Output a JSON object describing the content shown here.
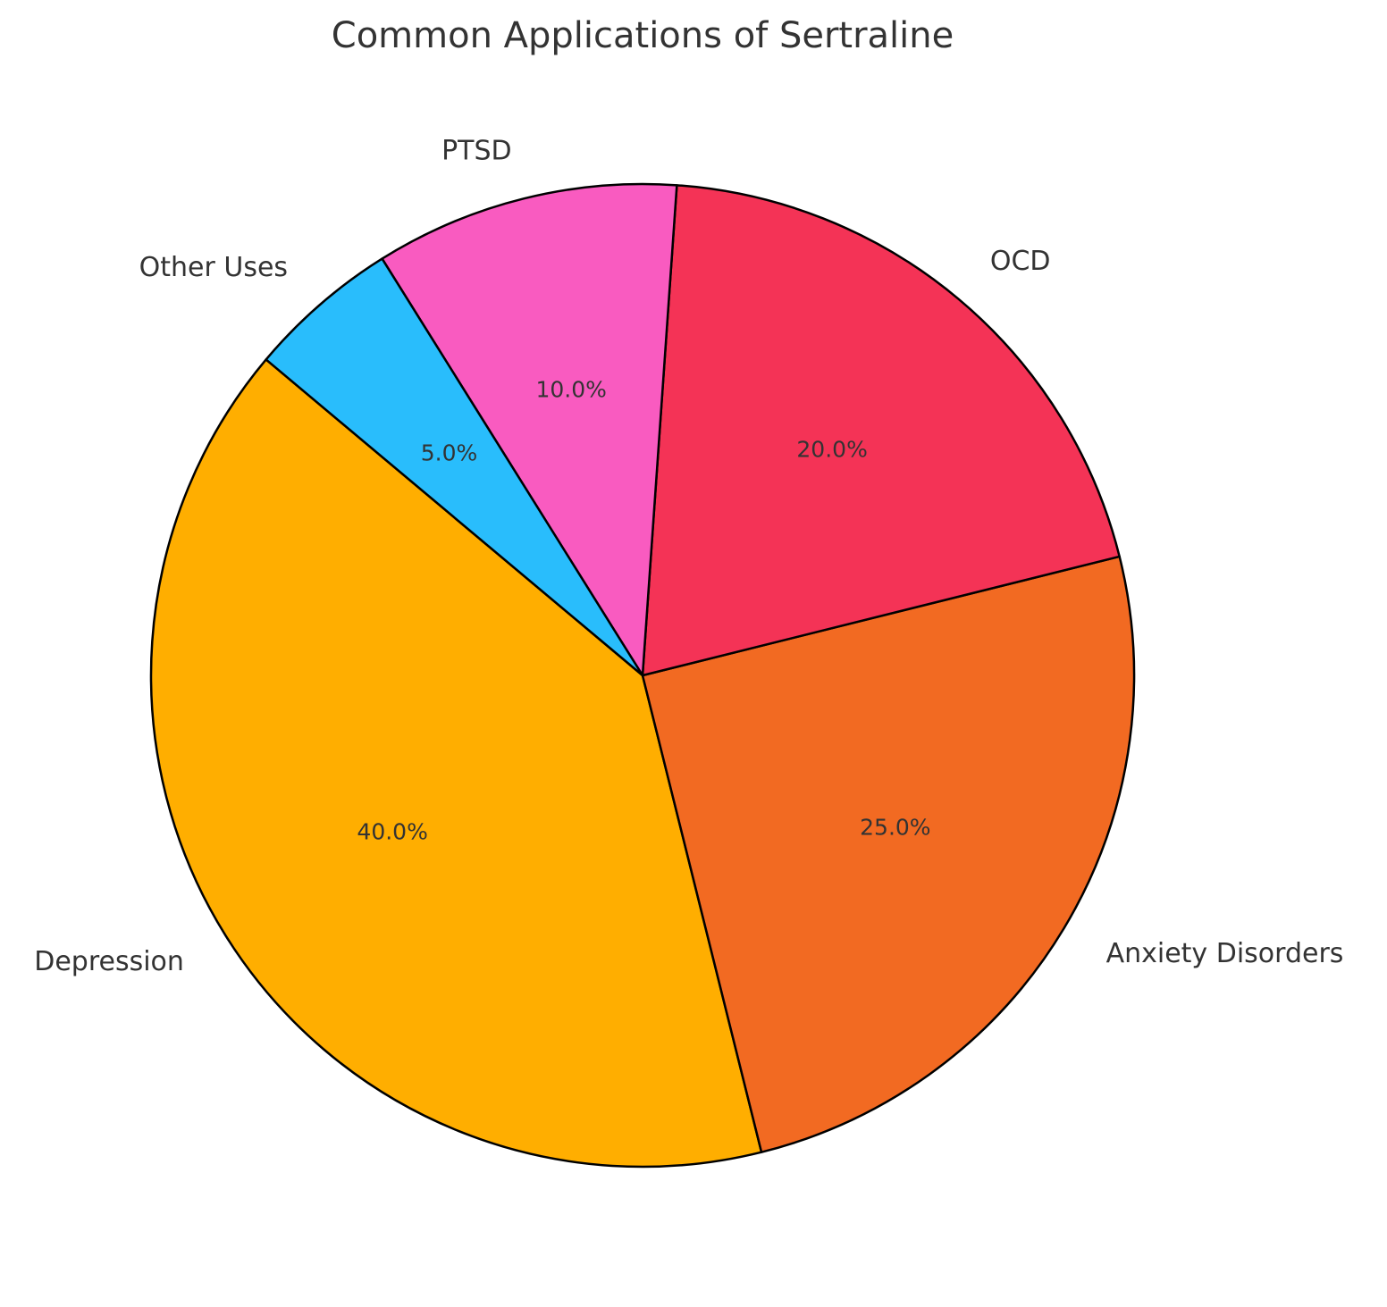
{
  "chart_data": {
    "type": "pie",
    "title": "Common Applications of Sertraline",
    "start_angle_deg": 140,
    "direction": "counterclockwise",
    "slices": [
      {
        "label": "Depression",
        "value": 40,
        "pct_text": "40.0%",
        "color": "#FFAE00"
      },
      {
        "label": "Anxiety Disorders",
        "value": 25,
        "pct_text": "25.0%",
        "color": "#F26A22"
      },
      {
        "label": "OCD",
        "value": 20,
        "pct_text": "20.0%",
        "color": "#F43356"
      },
      {
        "label": "PTSD",
        "value": 10,
        "pct_text": "10.0%",
        "color": "#F95BC0"
      },
      {
        "label": "Other Uses",
        "value": 5,
        "pct_text": "5.0%",
        "color": "#29BDFC"
      }
    ]
  }
}
